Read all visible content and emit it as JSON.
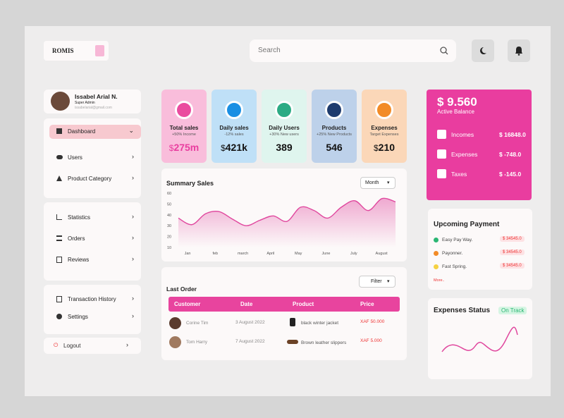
{
  "brand": "ROMIS",
  "search": {
    "placeholder": "Search"
  },
  "profile": {
    "name": "Issabel Arial N.",
    "role": "Super Admin",
    "email": "issabelarial@gmail.com"
  },
  "nav": {
    "main": [
      "Dashboard",
      "Users",
      "Product Category"
    ],
    "reports": [
      "Statistics",
      "Orders",
      "Reviews"
    ],
    "account": [
      "Transaction History",
      "Settings"
    ],
    "logout": "Logout"
  },
  "stats": [
    {
      "title": "Total sales",
      "subtitle": "+50% Income",
      "currency": "$",
      "value": "275m"
    },
    {
      "title": "Daily sales",
      "subtitle": "-12% sales",
      "currency": "$",
      "value": "421k"
    },
    {
      "title": "Daily Users",
      "subtitle": "+30% New users",
      "value": "389"
    },
    {
      "title": "Products",
      "subtitle": "+25% New Products",
      "value": "546"
    },
    {
      "title": "Expenses",
      "subtitle": "Target Expenses",
      "currency": "$",
      "value": "210"
    }
  ],
  "summary_sales": {
    "type": "line",
    "title": "Summary Sales",
    "period": "Month",
    "x_labels": [
      "Jan",
      "feb",
      "march",
      "April",
      "May",
      "June",
      "July",
      "August"
    ],
    "ylim": [
      10,
      60
    ],
    "yticks": [
      10,
      20,
      30,
      40,
      50,
      60
    ],
    "values": [
      37,
      31,
      41,
      43,
      36,
      30,
      35,
      39,
      34,
      47,
      44,
      37,
      47,
      53,
      44,
      55,
      52
    ],
    "color": "#e0479e"
  },
  "last_order": {
    "title": "Last Order",
    "filter": "Filter",
    "columns": [
      "Customer",
      "Date",
      "Product",
      "Price"
    ],
    "rows": [
      [
        "Corine Tim",
        "3 August 2022",
        "black winter jacket",
        "XAF 50.000"
      ],
      [
        "Tom Harry",
        "7 August 2022",
        "Brown leather slippers",
        "XAF 5.000"
      ]
    ]
  },
  "balance": {
    "amount": "$ 9.560",
    "label": "Active Balance",
    "rows": [
      [
        "Incomes",
        "$ 16848.0"
      ],
      [
        "Expenses",
        "$ -748.0"
      ],
      [
        "Taxes",
        "$ -145.0"
      ]
    ]
  },
  "upcoming": {
    "title": "Upcoming Payment",
    "items": [
      [
        "Easy Pay Way.",
        "$ 34545.0"
      ],
      [
        "Payonner.",
        "$ 34545.0"
      ],
      [
        "Fast Spring.",
        "$ 34545.0"
      ]
    ],
    "more": "More.."
  },
  "expenses_status": {
    "title": "Expenses Status",
    "status": "On Track"
  }
}
